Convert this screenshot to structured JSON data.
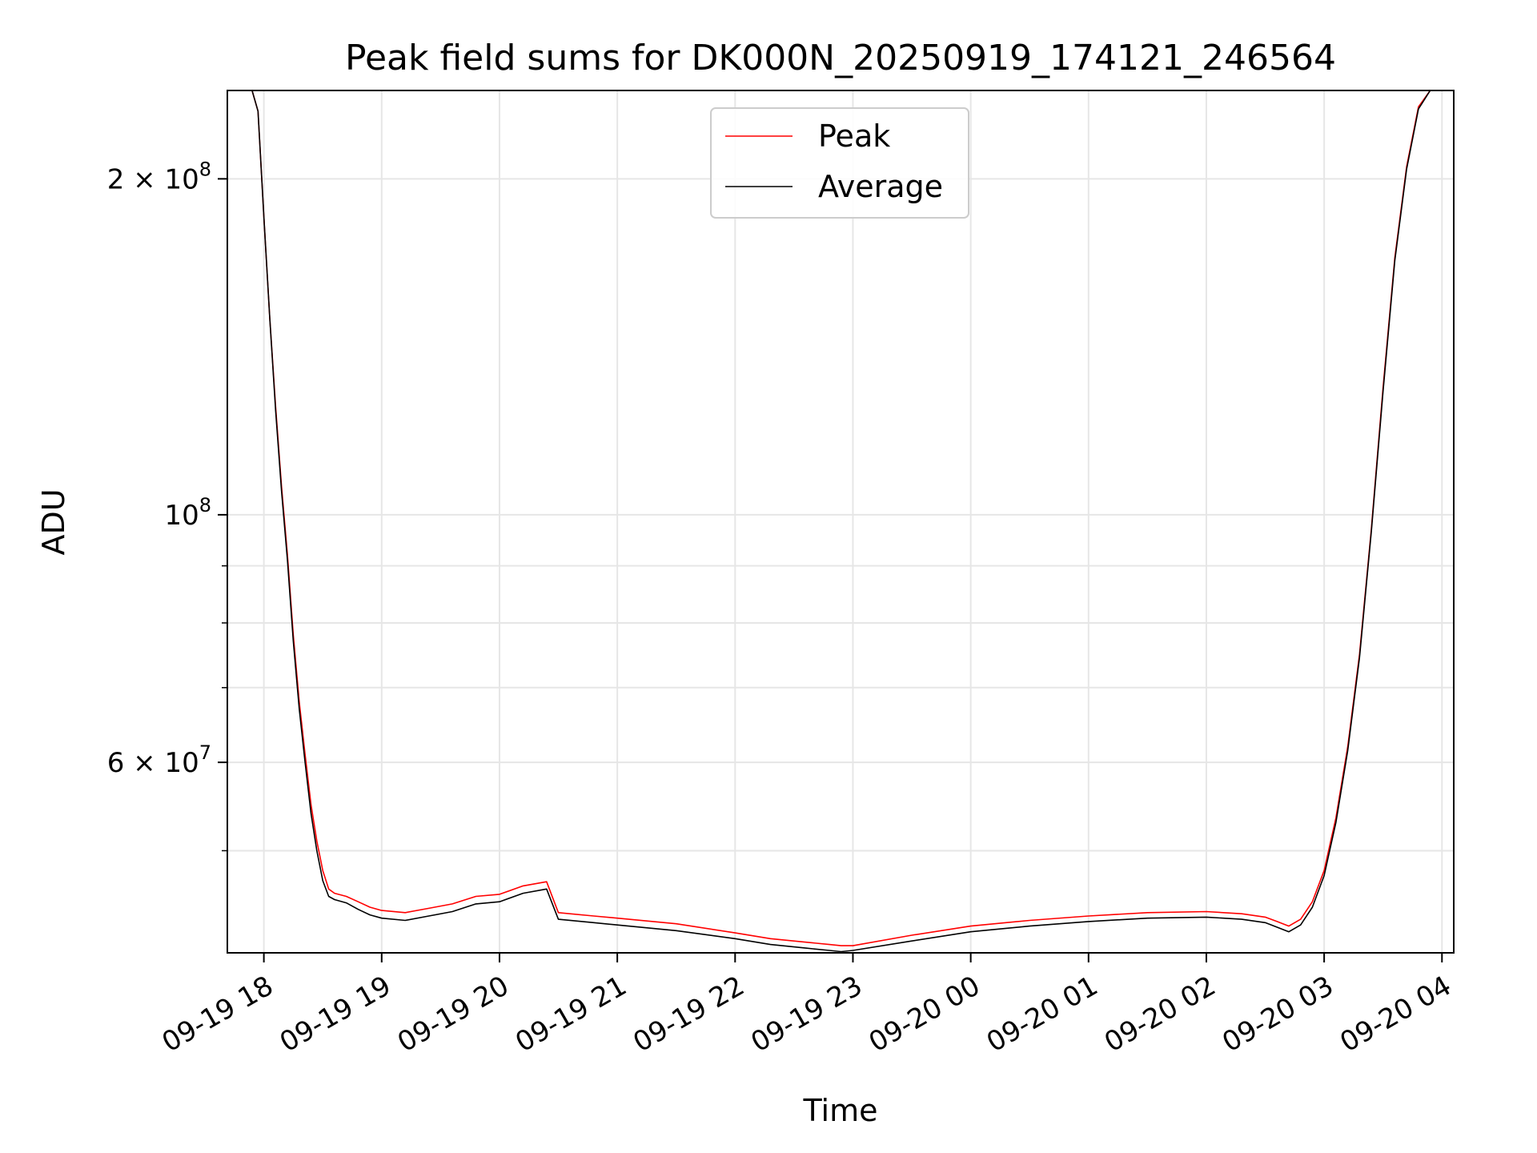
{
  "chart_data": {
    "type": "line",
    "title": "Peak field sums for DK000N_20250919_174121_246564",
    "xlabel": "Time",
    "ylabel": "ADU",
    "yscale": "log",
    "ylim": [
      40500000,
      240000000
    ],
    "xlim_hours": [
      17.69,
      28.1
    ],
    "grid": true,
    "legend_position": "upper center",
    "x_ticks": [
      {
        "hour": 18,
        "label": "09-19 18"
      },
      {
        "hour": 19,
        "label": "09-19 19"
      },
      {
        "hour": 20,
        "label": "09-19 20"
      },
      {
        "hour": 21,
        "label": "09-19 21"
      },
      {
        "hour": 22,
        "label": "09-19 22"
      },
      {
        "hour": 23,
        "label": "09-19 23"
      },
      {
        "hour": 24,
        "label": "09-20 00"
      },
      {
        "hour": 25,
        "label": "09-20 01"
      },
      {
        "hour": 26,
        "label": "09-20 02"
      },
      {
        "hour": 27,
        "label": "09-20 03"
      },
      {
        "hour": 28,
        "label": "09-20 04"
      }
    ],
    "y_major_ticks": [
      {
        "value": 200000000,
        "base": "2 × 10",
        "exp": "8"
      },
      {
        "value": 100000000,
        "base": "10",
        "exp": "8"
      },
      {
        "value": 60000000,
        "base": "6 × 10",
        "exp": "7"
      }
    ],
    "y_minor_ticks": [
      50000000,
      70000000,
      80000000,
      90000000
    ],
    "series": [
      {
        "name": "Peak",
        "color": "#ff0000",
        "x": [
          17.69,
          17.9,
          17.95,
          18.0,
          18.05,
          18.1,
          18.15,
          18.2,
          18.25,
          18.3,
          18.35,
          18.4,
          18.45,
          18.5,
          18.55,
          18.6,
          18.7,
          18.8,
          18.9,
          19.0,
          19.2,
          19.4,
          19.6,
          19.8,
          20.0,
          20.2,
          20.4,
          20.5,
          20.8,
          21.0,
          21.5,
          22.0,
          22.3,
          22.6,
          22.8,
          22.9,
          23.0,
          23.5,
          24.0,
          24.5,
          25.0,
          25.5,
          26.0,
          26.3,
          26.5,
          26.6,
          26.7,
          26.8,
          26.9,
          27.0,
          27.1,
          27.2,
          27.3,
          27.4,
          27.5,
          27.6,
          27.7,
          27.8,
          27.9,
          28.0,
          28.1
        ],
        "y": [
          240000000,
          240000000,
          230000000,
          185000000,
          150000000,
          125000000,
          106000000,
          92000000,
          78000000,
          68000000,
          61000000,
          55000000,
          51000000,
          48000000,
          46200000,
          45800000,
          45500000,
          45000000,
          44500000,
          44200000,
          44000000,
          44400000,
          44800000,
          45500000,
          45700000,
          46500000,
          46900000,
          44000000,
          43700000,
          43500000,
          43000000,
          42200000,
          41700000,
          41400000,
          41200000,
          41100000,
          41100000,
          42000000,
          42800000,
          43300000,
          43700000,
          44000000,
          44100000,
          43900000,
          43600000,
          43200000,
          42800000,
          43400000,
          45000000,
          48000000,
          53500000,
          62000000,
          75000000,
          97000000,
          130000000,
          170000000,
          205000000,
          232000000,
          240000000,
          240000000,
          240000000
        ]
      },
      {
        "name": "Average",
        "color": "#000000",
        "x": [
          17.69,
          17.9,
          17.95,
          18.0,
          18.05,
          18.1,
          18.15,
          18.2,
          18.25,
          18.3,
          18.35,
          18.4,
          18.45,
          18.5,
          18.55,
          18.6,
          18.7,
          18.8,
          18.9,
          19.0,
          19.2,
          19.4,
          19.6,
          19.8,
          20.0,
          20.2,
          20.4,
          20.5,
          20.8,
          21.0,
          21.5,
          22.0,
          22.3,
          22.6,
          22.8,
          22.9,
          23.0,
          23.5,
          24.0,
          24.5,
          25.0,
          25.5,
          26.0,
          26.3,
          26.5,
          26.6,
          26.7,
          26.8,
          26.9,
          27.0,
          27.1,
          27.2,
          27.3,
          27.4,
          27.5,
          27.6,
          27.7,
          27.8,
          27.9,
          28.0,
          28.1
        ],
        "y": [
          240000000,
          240000000,
          230000000,
          185000000,
          150000000,
          124000000,
          105000000,
          91000000,
          77000000,
          67000000,
          60000000,
          54000000,
          50000000,
          47000000,
          45500000,
          45200000,
          44900000,
          44300000,
          43800000,
          43500000,
          43300000,
          43700000,
          44100000,
          44800000,
          45000000,
          45800000,
          46200000,
          43400000,
          43100000,
          42900000,
          42400000,
          41700000,
          41200000,
          40900000,
          40700000,
          40600000,
          40700000,
          41500000,
          42300000,
          42800000,
          43200000,
          43500000,
          43600000,
          43400000,
          43100000,
          42700000,
          42300000,
          42900000,
          44500000,
          47500000,
          53000000,
          61500000,
          74500000,
          96500000,
          129000000,
          169000000,
          204000000,
          231000000,
          240000000,
          240000000,
          240000000
        ]
      }
    ]
  }
}
